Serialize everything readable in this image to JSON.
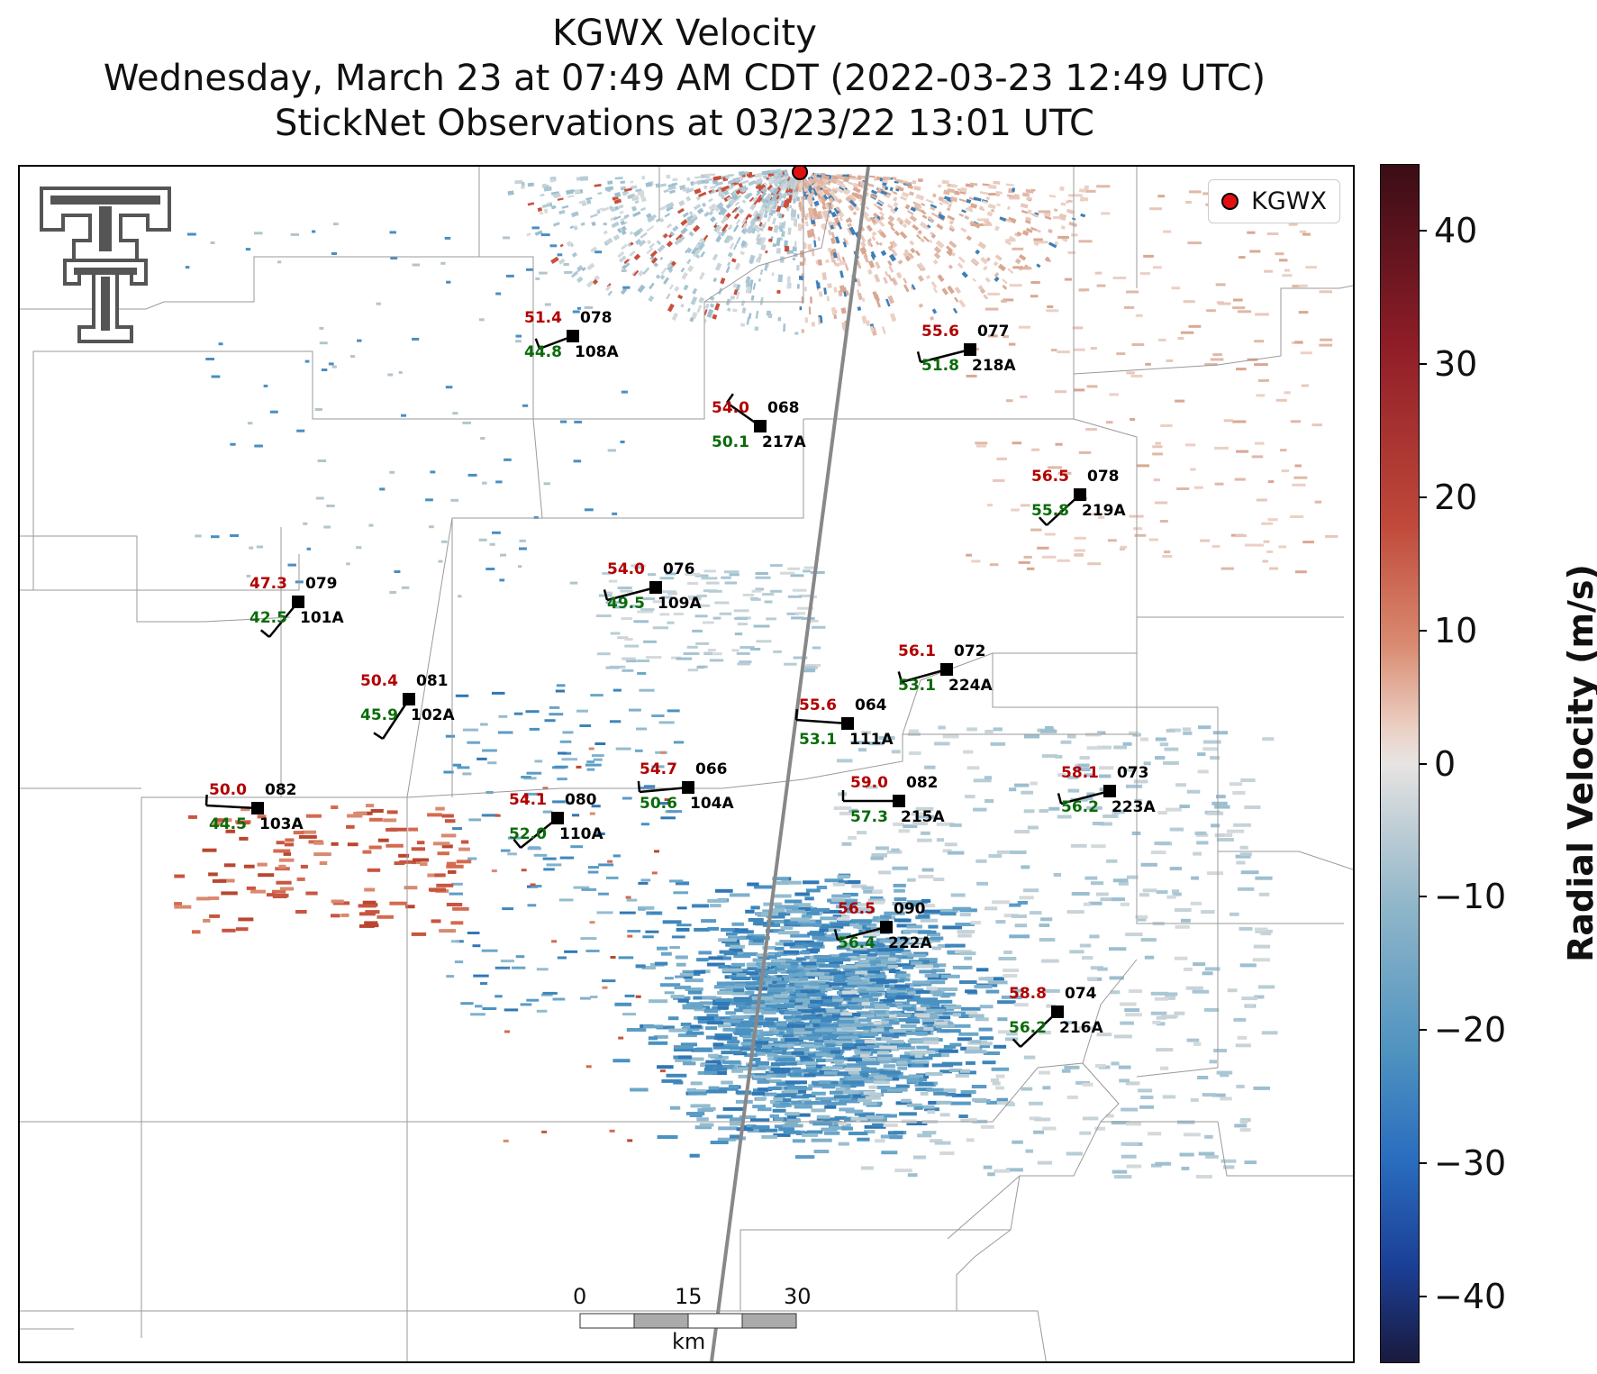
{
  "title": {
    "line1": "KGWX Velocity",
    "line2": "Wednesday, March 23 at 07:49 AM CDT (2022-03-23 12:49 UTC)",
    "line3": "StickNet Observations at 03/23/22 13:01 UTC"
  },
  "legend": {
    "label": "KGWX"
  },
  "logo": {
    "icon": "texas-tech-double-t-logo",
    "color": "#555555"
  },
  "colorbar": {
    "label": "Radial Velocity (m/s)",
    "range": [
      -45,
      45
    ],
    "ticks": [
      "40",
      "30",
      "20",
      "10",
      "0",
      "−10",
      "−20",
      "−30",
      "−40"
    ],
    "tick_values": [
      40,
      30,
      20,
      10,
      0,
      -10,
      -20,
      -30,
      -40
    ],
    "colormap": "diverging red-white-blue"
  },
  "scalebar": {
    "ticks": [
      "0",
      "15",
      "30"
    ],
    "unit": "km"
  },
  "stations": [
    {
      "id": "108A",
      "gust": "51.4",
      "dir": "078",
      "sust": "44.8"
    },
    {
      "id": "218A",
      "gust": "55.6",
      "dir": "077",
      "sust": "51.8"
    },
    {
      "id": "217A",
      "gust": "54.0",
      "dir": "068",
      "sust": "50.1"
    },
    {
      "id": "219A",
      "gust": "56.5",
      "dir": "078",
      "sust": "55.8"
    },
    {
      "id": "109A",
      "gust": "54.0",
      "dir": "076",
      "sust": "49.5"
    },
    {
      "id": "101A",
      "gust": "47.3",
      "dir": "079",
      "sust": "42.5"
    },
    {
      "id": "224A",
      "gust": "56.1",
      "dir": "072",
      "sust": "53.1"
    },
    {
      "id": "102A",
      "gust": "50.4",
      "dir": "081",
      "sust": "45.9"
    },
    {
      "id": "111A",
      "gust": "55.6",
      "dir": "064",
      "sust": "53.1"
    },
    {
      "id": "104A",
      "gust": "54.7",
      "dir": "066",
      "sust": "50.6"
    },
    {
      "id": "215A",
      "gust": "59.0",
      "dir": "082",
      "sust": "57.3"
    },
    {
      "id": "223A",
      "gust": "58.1",
      "dir": "073",
      "sust": "56.2"
    },
    {
      "id": "103A",
      "gust": "50.0",
      "dir": "082",
      "sust": "44.5"
    },
    {
      "id": "110A",
      "gust": "54.1",
      "dir": "080",
      "sust": "52.0"
    },
    {
      "id": "222A",
      "gust": "56.5",
      "dir": "090",
      "sust": "56.4"
    },
    {
      "id": "216A",
      "gust": "58.8",
      "dir": "074",
      "sust": "56.2"
    }
  ]
}
